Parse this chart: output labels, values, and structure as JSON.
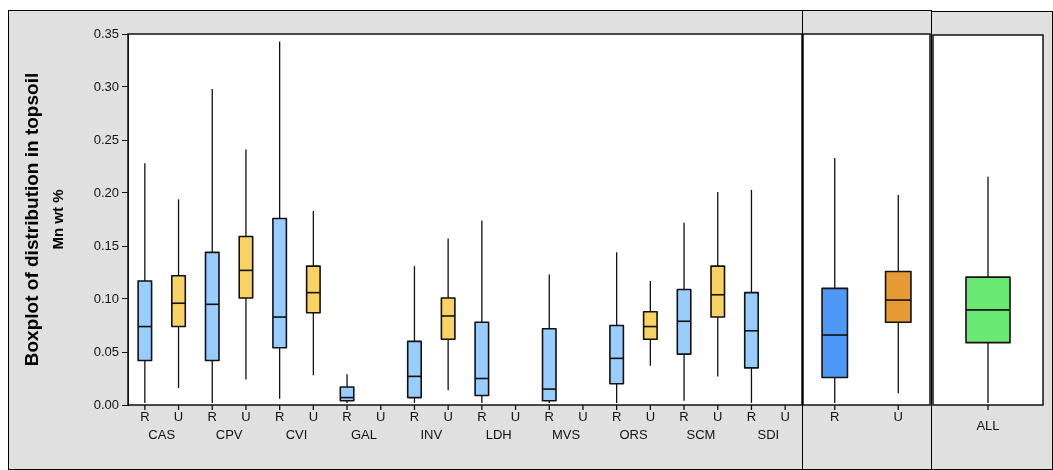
{
  "chart_data": [
    {
      "type": "box",
      "ylabel": "Boxplot of distribution in topsoil\nMn wt %",
      "categories": [
        "R",
        "U",
        "R",
        "U",
        "R",
        "U",
        "R",
        "U",
        "R",
        "U",
        "R",
        "U",
        "R",
        "U",
        "R",
        "U",
        "R",
        "U",
        "R",
        "U"
      ],
      "annotations": [
        "CAS",
        "CPV",
        "CVI",
        "GAL",
        "INV",
        "LDH",
        "MVS",
        "ORS",
        "SCM",
        "SDI"
      ],
      "ylim": [
        0,
        0.35
      ],
      "yticks": [
        {
          "value": 0,
          "label": "0.00"
        },
        {
          "value": 0.05,
          "label": "0.05"
        },
        {
          "value": 0.1,
          "label": "0.10"
        },
        {
          "value": 0.15,
          "label": "0.15"
        },
        {
          "value": 0.2,
          "label": "0.20"
        },
        {
          "value": 0.25,
          "label": "0.25"
        },
        {
          "value": 0.3,
          "label": "0.30"
        },
        {
          "value": 0.35,
          "label": "0.35"
        }
      ],
      "colors": [
        "#99ccff",
        "#f8d264",
        "#99ccff",
        "#f8d264",
        "#99ccff",
        "#f8d264",
        "#99ccff",
        null,
        "#99ccff",
        "#f8d264",
        "#99ccff",
        null,
        "#99ccff",
        null,
        "#99ccff",
        "#f8d264",
        "#99ccff",
        "#f8d264",
        "#99ccff",
        null
      ],
      "boxes": [
        {
          "low": 0.002,
          "q1": 0.042,
          "median": 0.074,
          "q3": 0.117,
          "high": 0.228
        },
        {
          "low": 0.016,
          "q1": 0.074,
          "median": 0.096,
          "q3": 0.122,
          "high": 0.194
        },
        {
          "low": 0.002,
          "q1": 0.042,
          "median": 0.095,
          "q3": 0.144,
          "high": 0.298
        },
        {
          "low": 0.024,
          "q1": 0.101,
          "median": 0.127,
          "q3": 0.159,
          "high": 0.241
        },
        {
          "low": 0.006,
          "q1": 0.054,
          "median": 0.083,
          "q3": 0.176,
          "high": 0.343
        },
        {
          "low": 0.028,
          "q1": 0.087,
          "median": 0.106,
          "q3": 0.131,
          "high": 0.183
        },
        {
          "low": 0.002,
          "q1": 0.004,
          "median": 0.007,
          "q3": 0.017,
          "high": 0.029
        },
        null,
        {
          "low": 0.002,
          "q1": 0.007,
          "median": 0.027,
          "q3": 0.06,
          "high": 0.131
        },
        {
          "low": 0.014,
          "q1": 0.062,
          "median": 0.084,
          "q3": 0.101,
          "high": 0.157
        },
        {
          "low": 0.002,
          "q1": 0.009,
          "median": 0.025,
          "q3": 0.078,
          "high": 0.174
        },
        null,
        {
          "low": 0.002,
          "q1": 0.004,
          "median": 0.015,
          "q3": 0.072,
          "high": 0.123
        },
        null,
        {
          "low": 0.002,
          "q1": 0.02,
          "median": 0.044,
          "q3": 0.075,
          "high": 0.144
        },
        {
          "low": 0.037,
          "q1": 0.062,
          "median": 0.074,
          "q3": 0.088,
          "high": 0.117
        },
        {
          "low": 0.004,
          "q1": 0.048,
          "median": 0.079,
          "q3": 0.109,
          "high": 0.172
        },
        {
          "low": 0.027,
          "q1": 0.083,
          "median": 0.104,
          "q3": 0.131,
          "high": 0.201
        },
        {
          "low": 0.002,
          "q1": 0.035,
          "median": 0.07,
          "q3": 0.106,
          "high": 0.203
        },
        null
      ]
    },
    {
      "type": "box",
      "categories": [
        "R",
        "U"
      ],
      "ylim": [
        0,
        0.35
      ],
      "tick_labels": "x",
      "colors": [
        "#4d99f5",
        "#e59a35"
      ],
      "boxes": [
        {
          "low": 0.002,
          "q1": 0.026,
          "median": 0.066,
          "q3": 0.11,
          "high": 0.233
        },
        {
          "low": 0.011,
          "q1": 0.078,
          "median": 0.099,
          "q3": 0.126,
          "high": 0.198
        }
      ]
    },
    {
      "type": "box",
      "categories": [
        "ALL"
      ],
      "ylim": [
        0,
        0.35
      ],
      "tick_labels": "x",
      "colors": [
        "#6ae874"
      ],
      "boxes": [
        {
          "low": 0.002,
          "q1": 0.059,
          "median": 0.09,
          "q3": 0.121,
          "high": 0.216
        }
      ]
    }
  ]
}
